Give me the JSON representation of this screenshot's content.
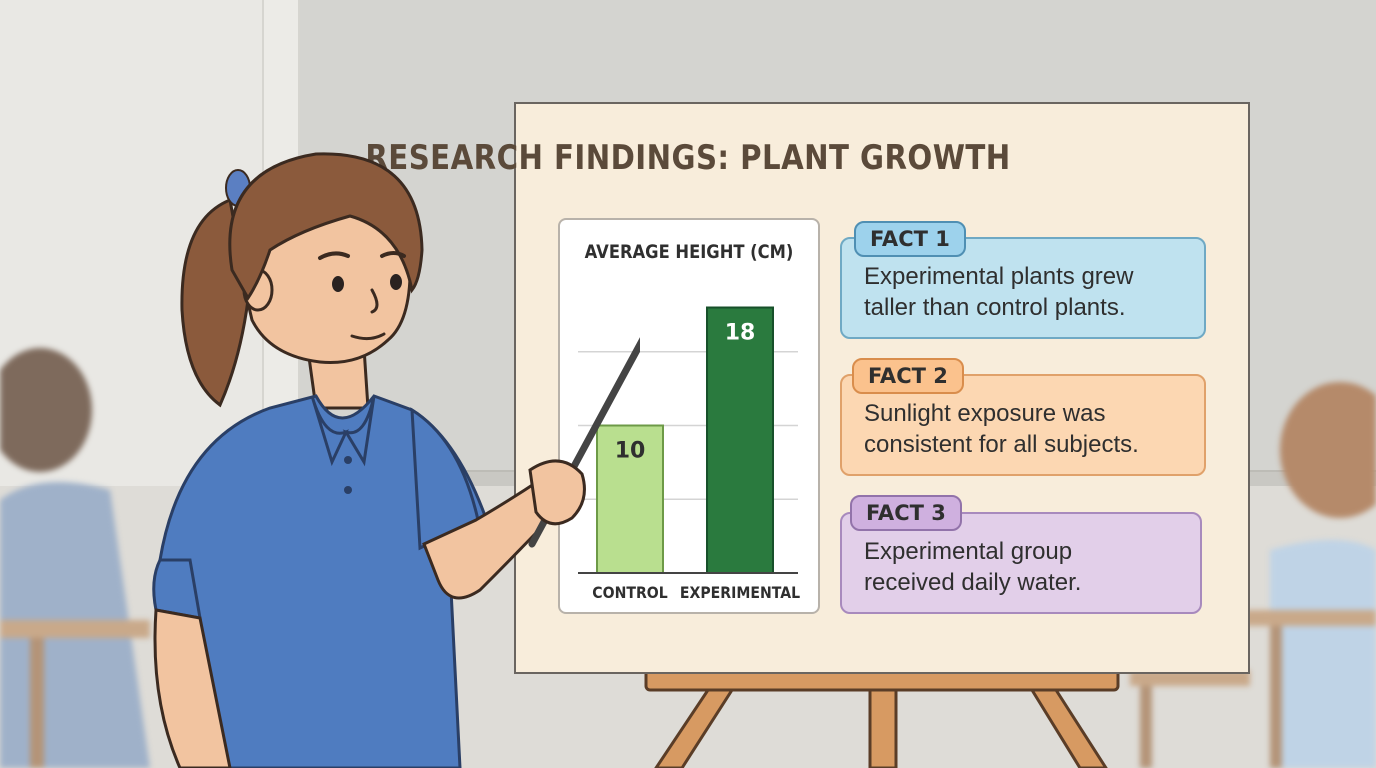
{
  "poster": {
    "title": "RESEARCH FINDINGS: PLANT GROWTH"
  },
  "chart_data": {
    "type": "bar",
    "title": "AVERAGE HEIGHT (CM)",
    "categories": [
      "CONTROL",
      "EXPERIMENTAL"
    ],
    "values": [
      10,
      18
    ],
    "ylim": [
      0,
      20
    ],
    "grid": true,
    "colors": [
      "#b9df8f",
      "#2a7a3e"
    ]
  },
  "facts": [
    {
      "tag": "FACT 1",
      "line1": "Experimental plants grew",
      "line2": "taller than control plants."
    },
    {
      "tag": "FACT 2",
      "line1": "Sunlight exposure was",
      "line2": "consistent for all subjects."
    },
    {
      "tag": "FACT 3",
      "line1": "Experimental group",
      "line2": "received daily water."
    }
  ],
  "colors": {
    "poster_bg": "#f8eddb",
    "shirt": "#4f7cc0",
    "hair": "#8b5a3c",
    "skin": "#f2c4a0"
  }
}
